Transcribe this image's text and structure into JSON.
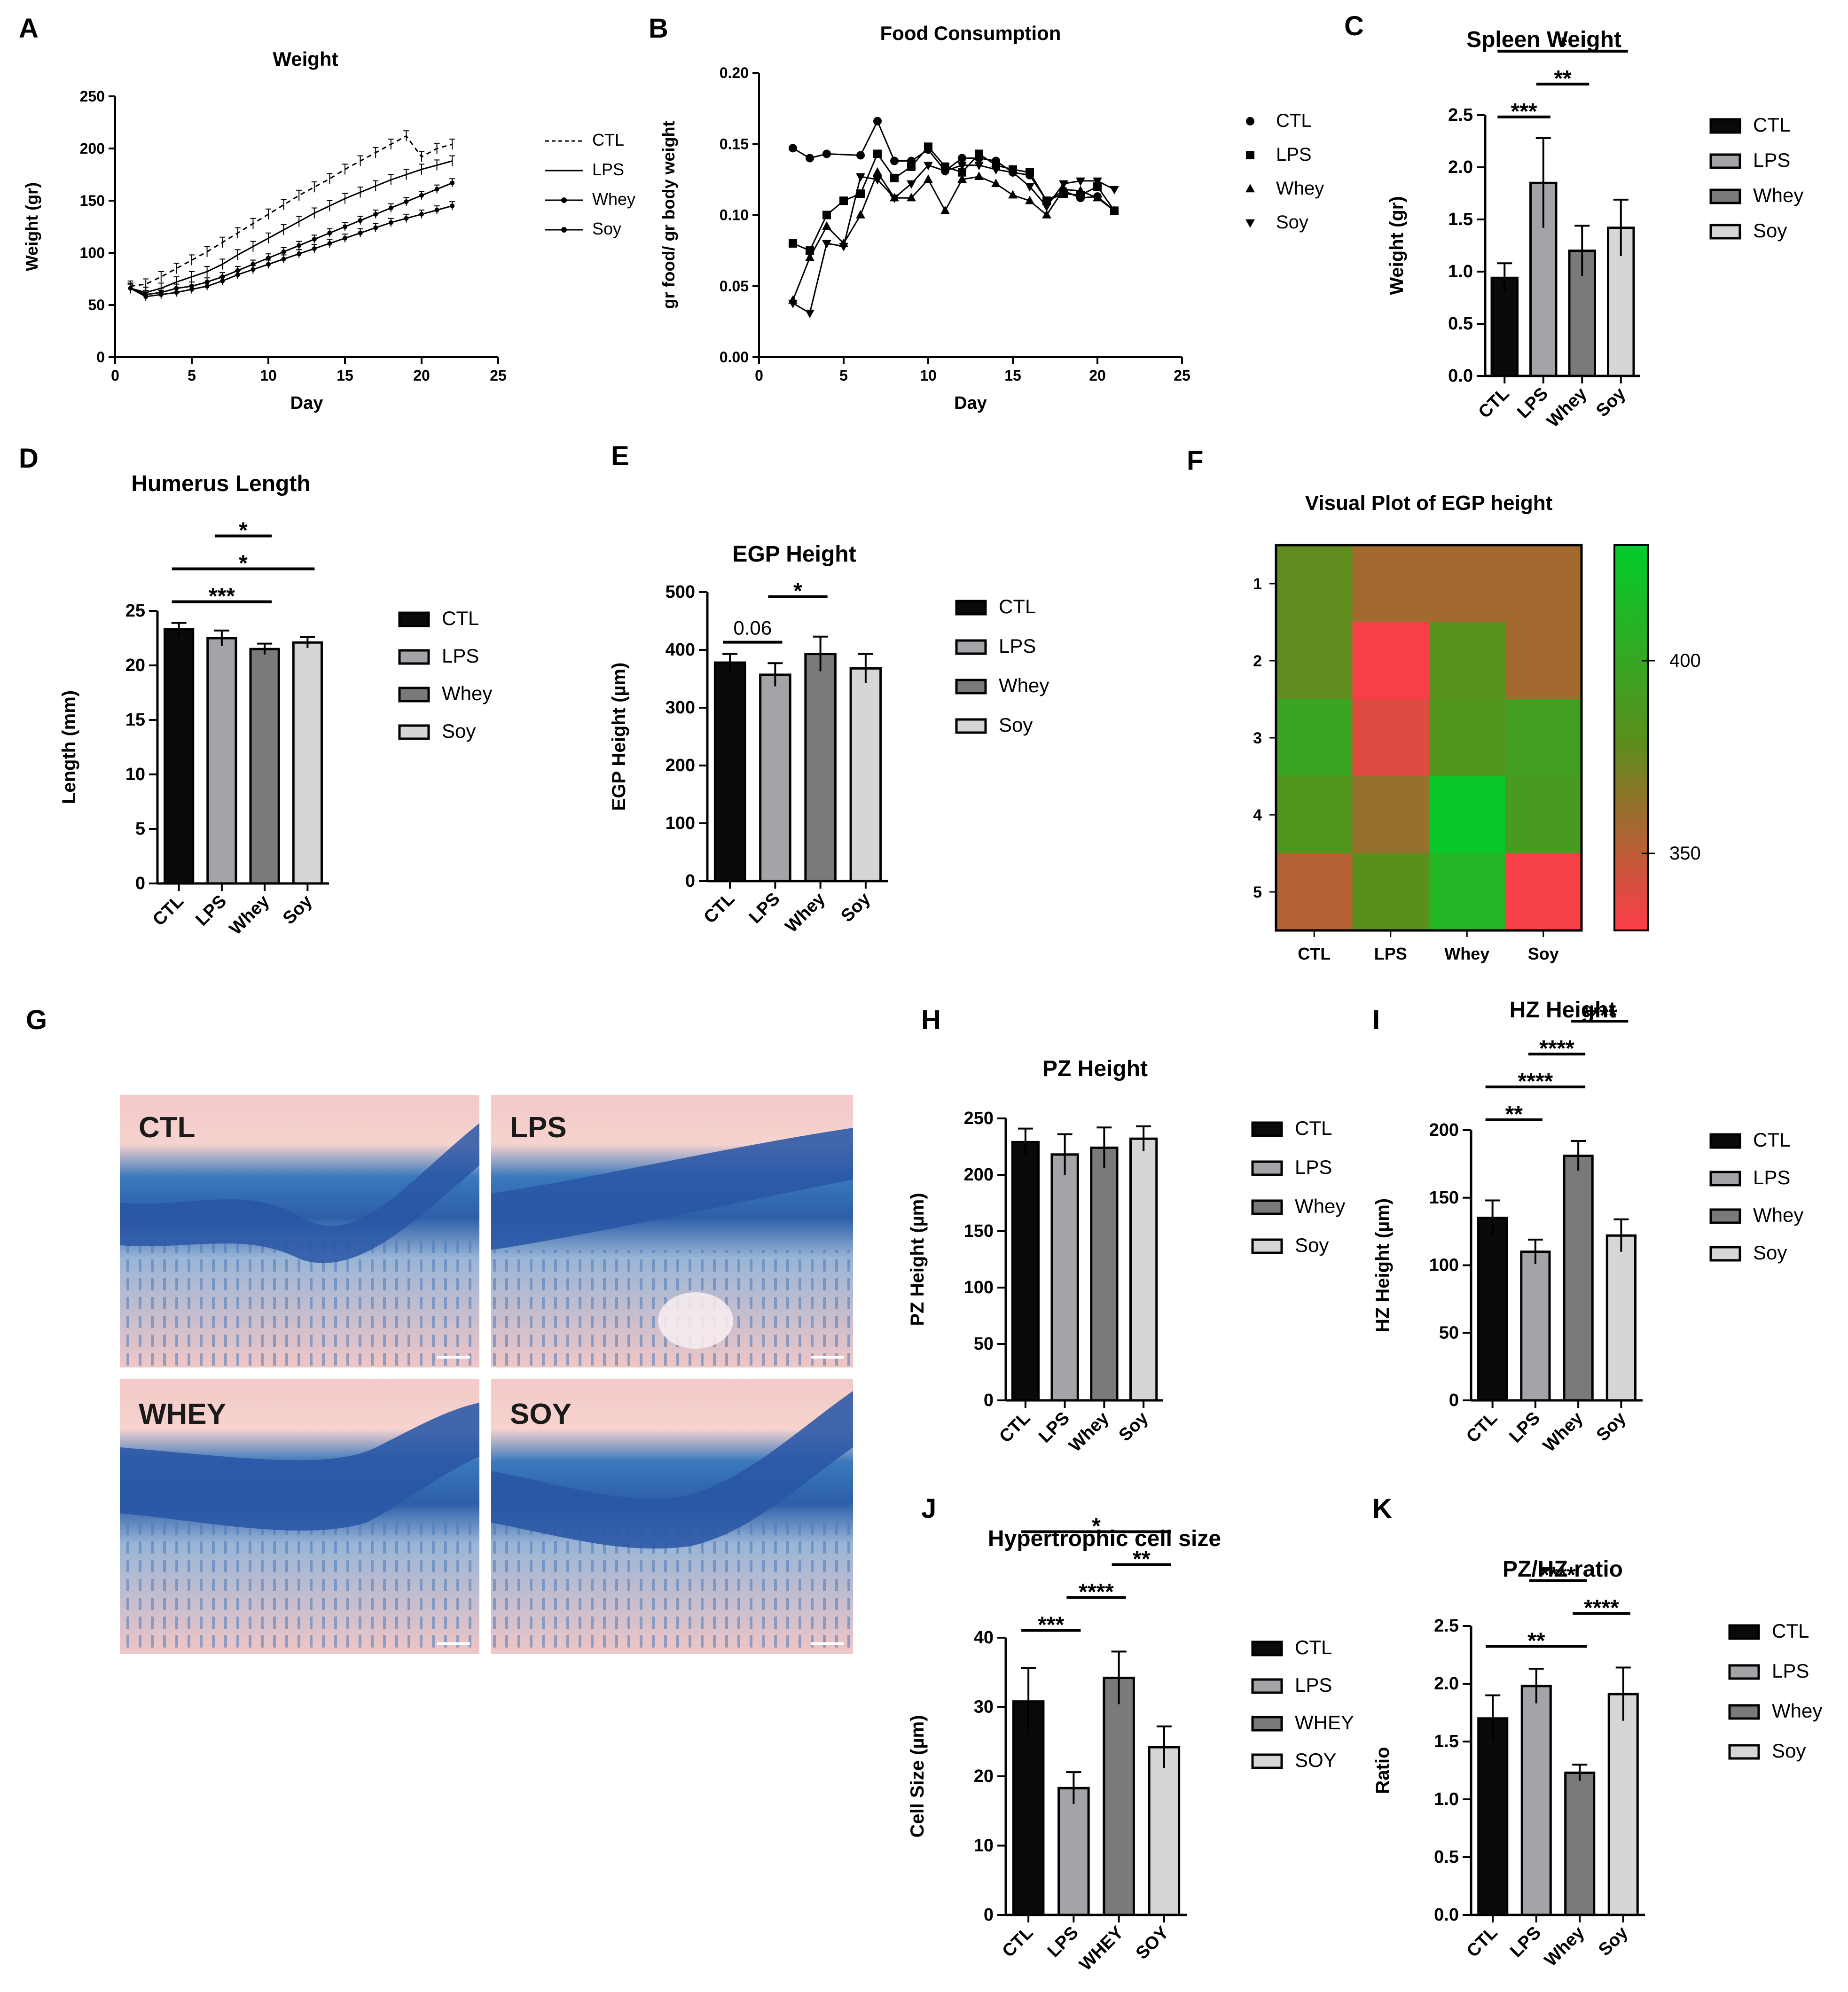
{
  "panels": {
    "A": "A",
    "B": "B",
    "C": "C",
    "D": "D",
    "E": "E",
    "F": "F",
    "G": "G",
    "H": "H",
    "I": "I",
    "J": "J",
    "K": "K"
  },
  "group_colors": {
    "CTL": "#0a0a0a",
    "LPS": "#a3a3a8",
    "Whey": "#7a7a7a",
    "Soy": "#d6d6d6"
  },
  "chart_data": [
    {
      "id": "A",
      "type": "line",
      "title": "Weight",
      "xlabel": "Day",
      "ylabel": "Weight (gr)",
      "xlim": [
        0,
        25
      ],
      "ylim": [
        0,
        250
      ],
      "xticks": [
        0,
        5,
        10,
        15,
        20,
        25
      ],
      "yticks": [
        0,
        50,
        100,
        150,
        200,
        250
      ],
      "x": [
        1,
        2,
        3,
        4,
        5,
        6,
        7,
        8,
        9,
        10,
        11,
        12,
        13,
        14,
        15,
        16,
        17,
        18,
        19,
        20,
        21,
        22
      ],
      "series": [
        {
          "name": "CTL",
          "values": [
            68,
            70,
            77,
            85,
            93,
            101,
            110,
            119,
            128,
            137,
            146,
            155,
            163,
            171,
            180,
            188,
            196,
            204,
            212,
            192,
            200,
            204
          ],
          "error": 5
        },
        {
          "name": "LPS",
          "values": [
            66,
            62,
            66,
            72,
            77,
            82,
            89,
            98,
            106,
            114,
            122,
            130,
            138,
            145,
            152,
            158,
            164,
            170,
            175,
            180,
            184,
            188
          ],
          "error": 5
        },
        {
          "name": "Whey",
          "values": [
            66,
            60,
            62,
            66,
            68,
            72,
            77,
            83,
            89,
            95,
            101,
            107,
            113,
            119,
            125,
            131,
            137,
            143,
            149,
            155,
            161,
            167
          ],
          "error": 4
        },
        {
          "name": "Soy",
          "values": [
            66,
            58,
            60,
            62,
            65,
            68,
            73,
            79,
            84,
            89,
            94,
            99,
            104,
            109,
            114,
            119,
            124,
            129,
            133,
            137,
            141,
            145
          ],
          "error": 4
        }
      ]
    },
    {
      "id": "B",
      "type": "line",
      "title": "Food Consumption",
      "xlabel": "Day",
      "ylabel": "gr food/ gr body weight",
      "xlim": [
        0,
        25
      ],
      "ylim": [
        0,
        0.2
      ],
      "xticks": [
        0,
        5,
        10,
        15,
        20,
        25
      ],
      "yticks": [
        "0.00",
        "0.05",
        "0.10",
        "0.15",
        "0.20"
      ],
      "x": [
        2,
        3,
        4,
        5,
        6,
        7,
        8,
        9,
        10,
        11,
        12,
        13,
        14,
        15,
        16,
        17,
        18,
        19,
        20,
        21
      ],
      "series": [
        {
          "name": "CTL",
          "values": [
            0.147,
            0.14,
            0.143,
            null,
            0.142,
            0.166,
            0.138,
            0.138,
            0.146,
            0.131,
            0.14,
            0.14,
            0.138,
            0.13,
            0.128,
            0.11,
            0.117,
            0.112,
            0.113,
            0.103
          ]
        },
        {
          "name": "LPS",
          "values": [
            0.08,
            0.075,
            0.1,
            0.11,
            0.115,
            0.143,
            0.126,
            0.134,
            0.148,
            0.134,
            0.13,
            0.143,
            0.135,
            0.132,
            0.13,
            0.11,
            0.115,
            0.114,
            0.12,
            0.103
          ]
        },
        {
          "name": "Whey",
          "values": [
            0.04,
            0.07,
            0.092,
            0.08,
            0.1,
            0.13,
            0.112,
            0.112,
            0.125,
            0.103,
            0.125,
            0.127,
            0.122,
            0.114,
            0.11,
            0.1,
            0.118,
            0.117,
            0.112,
            0.103
          ]
        },
        {
          "name": "Soy",
          "values": [
            0.038,
            0.031,
            0.08,
            0.078,
            0.127,
            0.125,
            0.112,
            0.122,
            0.135,
            0.131,
            0.135,
            0.135,
            0.132,
            0.13,
            0.12,
            0.106,
            0.122,
            0.124,
            0.124,
            0.118
          ]
        }
      ]
    },
    {
      "id": "C",
      "type": "bar",
      "title": "Spleen Weight",
      "ylabel": "Weight (gr)",
      "ylim": [
        0,
        2.5
      ],
      "yticks": [
        "0.0",
        "0.5",
        "1.0",
        "1.5",
        "2.0",
        "2.5"
      ],
      "categories": [
        "CTL",
        "LPS",
        "Whey",
        "Soy"
      ],
      "values": [
        0.94,
        1.85,
        1.2,
        1.42
      ],
      "errors": [
        0.14,
        0.43,
        0.24,
        0.27
      ],
      "significance": [
        {
          "from": 0,
          "to": 1,
          "label": "***"
        },
        {
          "from": 1,
          "to": 2,
          "label": "**"
        },
        {
          "from": 0,
          "to": 3,
          "label": "*"
        }
      ]
    },
    {
      "id": "D",
      "type": "bar",
      "title": "Humerus Length",
      "ylabel": "Length (mm)",
      "ylim": [
        0,
        25
      ],
      "yticks": [
        "0",
        "5",
        "10",
        "15",
        "20",
        "25"
      ],
      "categories": [
        "CTL",
        "LPS",
        "Whey",
        "Soy"
      ],
      "values": [
        23.3,
        22.5,
        21.5,
        22.1
      ],
      "errors": [
        0.6,
        0.7,
        0.5,
        0.5
      ],
      "significance": [
        {
          "from": 0,
          "to": 2,
          "label": "***"
        },
        {
          "from": 0,
          "to": 3,
          "label": "*"
        },
        {
          "from": 1,
          "to": 2,
          "label": "*"
        }
      ]
    },
    {
      "id": "E",
      "type": "bar",
      "title": "EGP Height",
      "ylabel": "EGP Height (µm)",
      "ylim": [
        0,
        500
      ],
      "yticks": [
        "0",
        "100",
        "200",
        "300",
        "400",
        "500"
      ],
      "categories": [
        "CTL",
        "LPS",
        "Whey",
        "Soy"
      ],
      "values": [
        378,
        357,
        393,
        368
      ],
      "errors": [
        15,
        20,
        30,
        25
      ],
      "significance": [
        {
          "from": 0,
          "to": 1,
          "label": "0.06"
        },
        {
          "from": 1,
          "to": 2,
          "label": "*"
        }
      ]
    },
    {
      "id": "F",
      "type": "heatmap",
      "title": "Visual Plot of EGP height",
      "columns": [
        "CTL",
        "LPS",
        "Whey",
        "Soy"
      ],
      "rows": [
        "1",
        "2",
        "3",
        "4",
        "5"
      ],
      "values": [
        [
          378,
          358,
          358,
          358
        ],
        [
          378,
          332,
          383,
          358
        ],
        [
          397,
          340,
          385,
          393
        ],
        [
          385,
          362,
          425,
          390
        ],
        [
          352,
          380,
          410,
          333
        ]
      ],
      "colorbar": {
        "min": 330,
        "max": 430,
        "ticks": [
          "350",
          "400"
        ],
        "low_color": "#ff3b4a",
        "mid_color": "#5a8f1c",
        "high_color": "#00cc2a"
      }
    },
    {
      "id": "H",
      "type": "bar",
      "title": "PZ Height",
      "ylabel": "PZ Height (µm)",
      "ylim": [
        0,
        250
      ],
      "yticks": [
        "0",
        "50",
        "100",
        "150",
        "200",
        "250"
      ],
      "categories": [
        "CTL",
        "LPS",
        "Whey",
        "Soy"
      ],
      "values": [
        229,
        218,
        224,
        232
      ],
      "errors": [
        12,
        18,
        18,
        11
      ],
      "significance": []
    },
    {
      "id": "I",
      "type": "bar",
      "title": "HZ Height",
      "ylabel": "HZ Height (µm)",
      "ylim": [
        0,
        200
      ],
      "yticks": [
        "0",
        "50",
        "100",
        "150",
        "200"
      ],
      "categories": [
        "CTL",
        "LPS",
        "Whey",
        "Soy"
      ],
      "values": [
        135,
        110,
        181,
        122
      ],
      "errors": [
        13,
        9,
        11,
        12
      ],
      "significance": [
        {
          "from": 0,
          "to": 1,
          "label": "**"
        },
        {
          "from": 0,
          "to": 2,
          "label": "****"
        },
        {
          "from": 1,
          "to": 2,
          "label": "****"
        },
        {
          "from": 2,
          "to": 3,
          "label": "****"
        }
      ]
    },
    {
      "id": "J",
      "type": "bar",
      "title": "Hypertrophic cell size",
      "ylabel": "Cell Size (µm)",
      "ylim": [
        0,
        40
      ],
      "yticks": [
        "0",
        "10",
        "20",
        "30",
        "40"
      ],
      "categories": [
        "CTL",
        "LPS",
        "WHEY",
        "SOY"
      ],
      "values": [
        30.8,
        18.3,
        34.2,
        24.2
      ],
      "errors": [
        4.8,
        2.3,
        3.8,
        3.0
      ],
      "significance": [
        {
          "from": 0,
          "to": 1,
          "label": "***"
        },
        {
          "from": 1,
          "to": 2,
          "label": "****"
        },
        {
          "from": 2,
          "to": 3,
          "label": "**"
        },
        {
          "from": 0,
          "to": 3,
          "label": "*"
        }
      ]
    },
    {
      "id": "K",
      "type": "bar",
      "title": "PZ/HZ ratio",
      "ylabel": "Ratio",
      "ylim": [
        0,
        2.5
      ],
      "yticks": [
        "0.0",
        "0.5",
        "1.0",
        "1.5",
        "2.0",
        "2.5"
      ],
      "categories": [
        "CTL",
        "LPS",
        "Whey",
        "Soy"
      ],
      "values": [
        1.7,
        1.98,
        1.23,
        1.91
      ],
      "errors": [
        0.2,
        0.15,
        0.07,
        0.23
      ],
      "significance": [
        {
          "from": 0,
          "to": 2,
          "label": "**"
        },
        {
          "from": 2,
          "to": 3,
          "label": "****"
        },
        {
          "from": 1,
          "to": 2,
          "label": "****"
        }
      ]
    }
  ],
  "histology": {
    "panel": "G",
    "images": [
      {
        "label": "CTL"
      },
      {
        "label": "LPS"
      },
      {
        "label": "WHEY"
      },
      {
        "label": "SOY"
      }
    ]
  }
}
